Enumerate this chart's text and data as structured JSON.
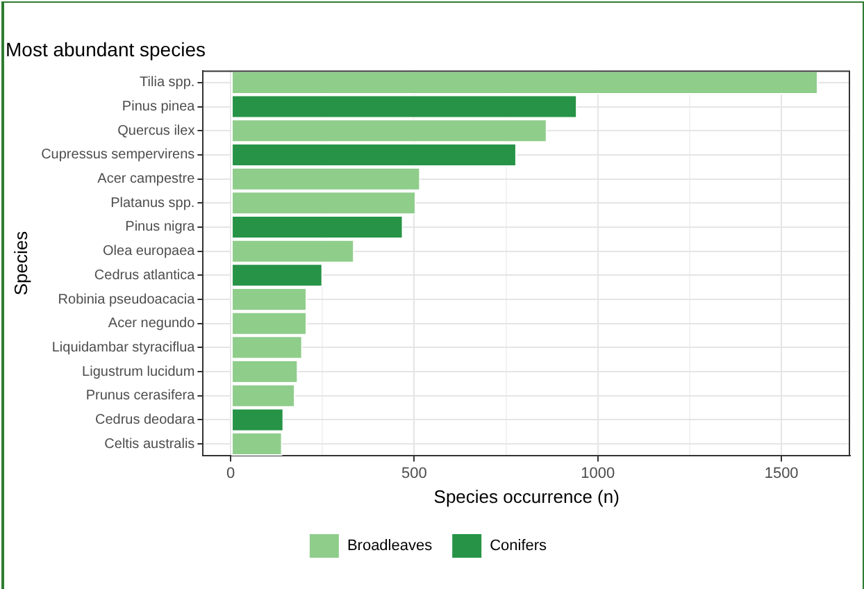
{
  "chart_data": {
    "type": "bar",
    "orientation": "horizontal",
    "stacked": true,
    "title": "Most abundant species",
    "xlabel": "Species occurrence (n)",
    "ylabel": "Species",
    "categories": [
      "Tilia spp.",
      "Pinus pinea",
      "Quercus ilex",
      "Cupressus sempervirens",
      "Acer campestre",
      "Platanus spp.",
      "Pinus nigra",
      "Olea europaea",
      "Cedrus atlantica",
      "Robinia pseudoacacia",
      "Acer negundo",
      "Liquidambar styraciflua",
      "Ligustrum lucidum",
      "Prunus cerasifera",
      "Cedrus deodara",
      "Celtis australis"
    ],
    "series": [
      {
        "name": "Broadleaves",
        "color": "#8fcd8b",
        "values": [
          1600,
          null,
          862,
          null,
          517,
          505,
          null,
          337,
          null,
          208,
          208,
          196,
          184,
          176,
          null,
          141
        ]
      },
      {
        "name": "Conifers",
        "color": "#279346",
        "values": [
          null,
          944,
          null,
          779,
          null,
          null,
          470,
          null,
          251,
          null,
          null,
          null,
          null,
          null,
          145,
          null
        ]
      }
    ],
    "xlim": [
      -75,
      1687
    ],
    "xticks": [
      0,
      {
        "value": 250,
        "label": null
      },
      500,
      {
        "value": 750,
        "label": null
      },
      1000,
      {
        "value": 1250,
        "label": null
      },
      1500
    ],
    "grid": true,
    "legend": "bottom"
  }
}
